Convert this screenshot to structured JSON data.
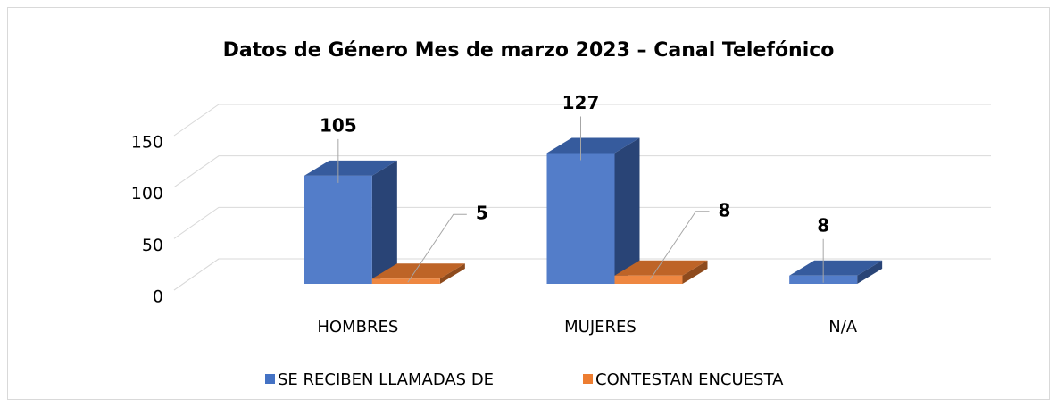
{
  "chart_data": {
    "type": "bar3d",
    "title": "Datos de Género Mes de marzo 2023 – Canal Telefónico",
    "categories": [
      "HOMBRES",
      "MUJERES",
      "N/A"
    ],
    "series": [
      {
        "name": "SE RECIBEN LLAMADAS DE",
        "color": "#4472c4",
        "values": [
          105,
          127,
          8
        ]
      },
      {
        "name": "CONTESTAN ENCUESTA",
        "color": "#ed7d31",
        "values": [
          5,
          8,
          null
        ]
      }
    ],
    "ylim": [
      0,
      150
    ],
    "yticks": [
      0,
      50,
      100,
      150
    ],
    "grid": true,
    "legend": "bottom"
  }
}
